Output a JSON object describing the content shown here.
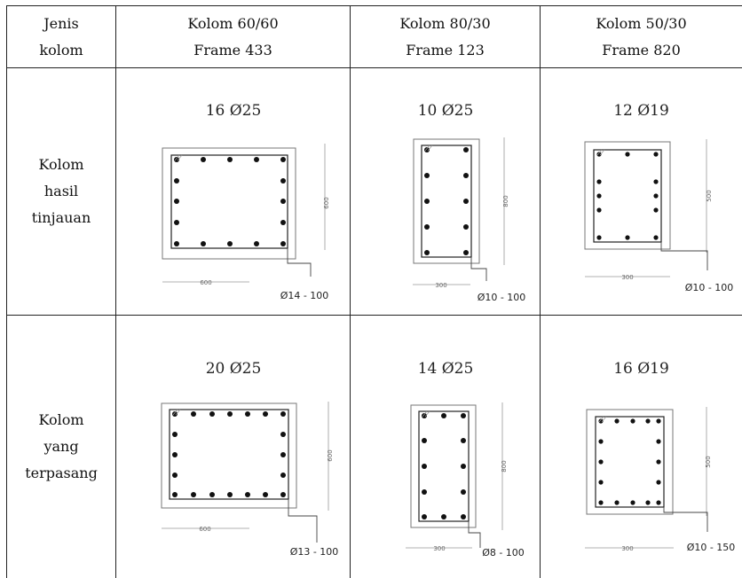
{
  "table": {
    "header": {
      "col0": [
        "Jenis",
        "kolom"
      ],
      "col1": [
        "Kolom 60/60",
        "Frame 433"
      ],
      "col2": [
        "Kolom 80/30",
        "Frame 123"
      ],
      "col3": [
        "Kolom 50/30",
        "Frame 820"
      ]
    },
    "rows": [
      {
        "label": [
          "Kolom",
          "hasil",
          "tinjauan"
        ],
        "cells": [
          {
            "rebar": "16 Ø25",
            "width_dim": "600",
            "height_dim": "600",
            "stirrup": "Ø14 - 100"
          },
          {
            "rebar": "10 Ø25",
            "width_dim": "300",
            "height_dim": "800",
            "stirrup": "Ø10 - 100"
          },
          {
            "rebar": "12 Ø19",
            "width_dim": "300",
            "height_dim": "500",
            "stirrup": "Ø10 - 100"
          }
        ]
      },
      {
        "label": [
          "Kolom",
          "yang",
          "terpasang"
        ],
        "cells": [
          {
            "rebar": "20 Ø25",
            "width_dim": "600",
            "height_dim": "600",
            "stirrup": "Ø13 - 100"
          },
          {
            "rebar": "14 Ø25",
            "width_dim": "300",
            "height_dim": "800",
            "stirrup": "Ø8 - 100"
          },
          {
            "rebar": "16 Ø19",
            "width_dim": "300",
            "height_dim": "500",
            "stirrup": "Ø10 - 150"
          }
        ]
      }
    ]
  }
}
